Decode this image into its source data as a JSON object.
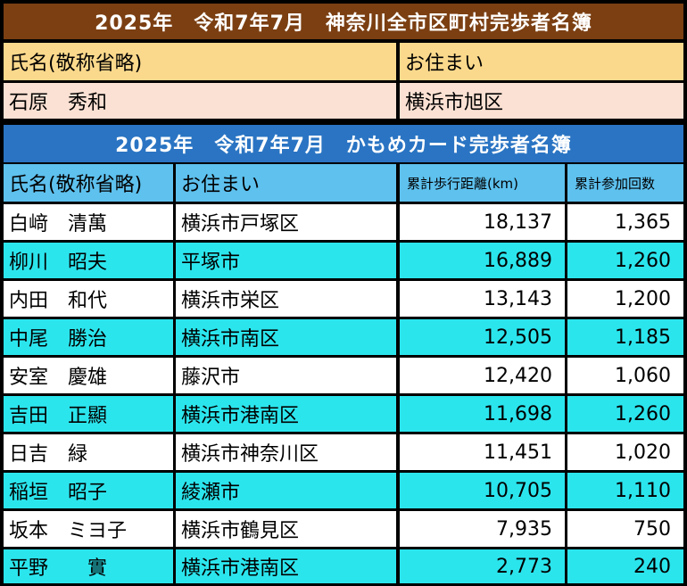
{
  "title_top": "2025年　令和7年7月　神奈川全市区町村完歩者名簿",
  "top_header": {
    "name_col": "氏名(敬称省略)",
    "address_col": "お住まい"
  },
  "top_row": {
    "name": "石原　秀和",
    "address": "横浜市旭区"
  },
  "title_kamome": "2025年　令和7年7月　かもめカード完歩者名簿",
  "kamome_header": {
    "name_col": "氏名(敬称省略)",
    "address_col": "お住まい",
    "distance_col": "累計歩行距離(km)",
    "count_col": "累計参加回数"
  },
  "rows": [
    {
      "name": "白﨑　清萬",
      "address": "横浜市戸塚区",
      "distance": "18,137",
      "count": "1,365"
    },
    {
      "name": "柳川　昭夫",
      "address": "平塚市",
      "distance": "16,889",
      "count": "1,260"
    },
    {
      "name": "内田　和代",
      "address": "横浜市栄区",
      "distance": "13,143",
      "count": "1,200"
    },
    {
      "name": "中尾　勝治",
      "address": "横浜市南区",
      "distance": "12,505",
      "count": "1,185"
    },
    {
      "name": "安室　慶雄",
      "address": "藤沢市",
      "distance": "12,420",
      "count": "1,060"
    },
    {
      "name": "吉田　正顯",
      "address": "横浜市港南区",
      "distance": "11,698",
      "count": "1,260"
    },
    {
      "name": "日吉　緑",
      "address": "横浜市神奈川区",
      "distance": "11,451",
      "count": "1,020"
    },
    {
      "name": "稲垣　昭子",
      "address": "綾瀬市",
      "distance": "10,705",
      "count": "1,110"
    },
    {
      "name": "坂本　ミヨ子",
      "address": "横浜市鶴見区",
      "distance": "7,935",
      "count": "750"
    },
    {
      "name": "平野　　實",
      "address": "横浜市港南区",
      "distance": "2,773",
      "count": "240"
    }
  ],
  "colors": {
    "title_top_bg": "#7b3f12",
    "header_yellow": "#fbd98c",
    "row_pink": "#fbe1d3",
    "title_blue": "#2a74c3",
    "header_lightblue": "#5ec1ee",
    "row_cyan": "#2be5ed",
    "row_white": "#ffffff"
  }
}
